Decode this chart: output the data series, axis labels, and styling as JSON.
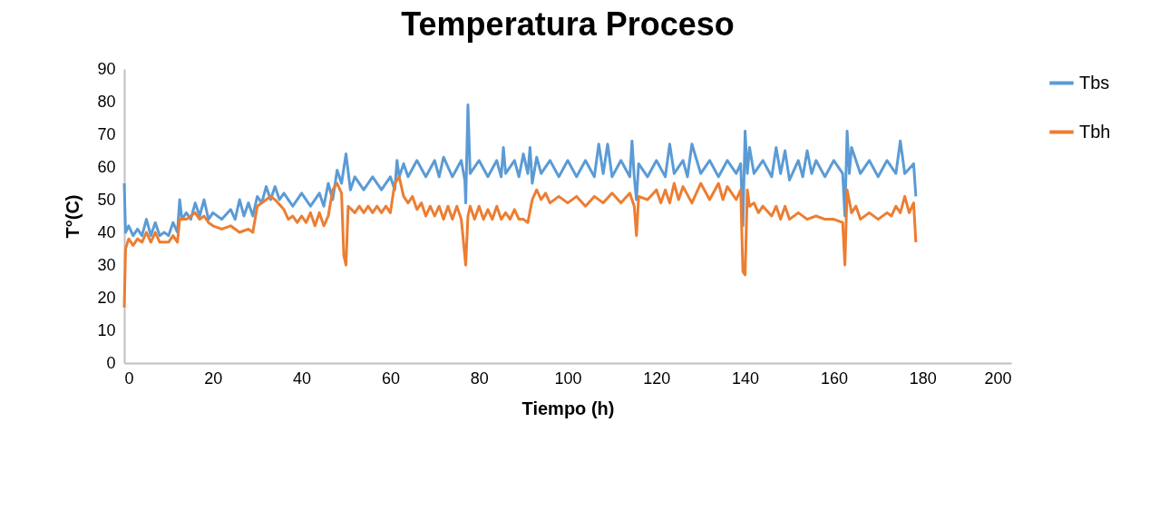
{
  "chart_data": {
    "type": "line",
    "title": "Temperatura  Proceso",
    "xlabel": "Tiempo (h)",
    "ylabel": "T°(C)",
    "xlim": [
      0,
      200
    ],
    "xticks": [
      0,
      20,
      40,
      60,
      80,
      100,
      120,
      140,
      160,
      180,
      200
    ],
    "ylim": [
      0,
      90
    ],
    "yticks": [
      0,
      10,
      20,
      30,
      40,
      50,
      60,
      70,
      80,
      90
    ],
    "grid": false,
    "legend": "right",
    "series": [
      {
        "name": "Tbs",
        "color": "#5b9bd5",
        "x": [
          0,
          0.3,
          1,
          2,
          3,
          4,
          5,
          6,
          7,
          8,
          9,
          10,
          11,
          12,
          12.5,
          13,
          14,
          15,
          16,
          17,
          18,
          19,
          20,
          22,
          24,
          25,
          26,
          27,
          28,
          29,
          30,
          31,
          32,
          33,
          34,
          35,
          36,
          38,
          40,
          42,
          44,
          45,
          46,
          47,
          48,
          49,
          50,
          51,
          52,
          54,
          56,
          58,
          60,
          61,
          61.5,
          62,
          63,
          64,
          66,
          68,
          70,
          71,
          72,
          74,
          76,
          76.8,
          77,
          77.5,
          78,
          80,
          82,
          84,
          85,
          85.5,
          86,
          88,
          89,
          90,
          91,
          91.5,
          92,
          93,
          94,
          96,
          98,
          100,
          102,
          104,
          106,
          107,
          108,
          109,
          110,
          112,
          114,
          114.5,
          115,
          115.5,
          116,
          118,
          120,
          122,
          123,
          124,
          126,
          127,
          128,
          130,
          132,
          134,
          136,
          138,
          139,
          139.5,
          140,
          140.5,
          141,
          142,
          144,
          146,
          147,
          148,
          149,
          150,
          152,
          153,
          154,
          155,
          156,
          158,
          160,
          162,
          162.5,
          163,
          163.5,
          164,
          166,
          168,
          170,
          172,
          174,
          175,
          176,
          178,
          178.5
        ],
        "values": [
          55,
          40,
          42,
          39,
          41,
          39,
          44,
          39,
          43,
          39,
          40,
          39,
          43,
          40,
          50,
          44,
          46,
          44,
          49,
          45,
          50,
          44,
          46,
          44,
          47,
          44,
          50,
          45,
          49,
          45,
          51,
          49,
          54,
          50,
          54,
          50,
          52,
          48,
          52,
          48,
          52,
          48,
          55,
          50,
          59,
          55,
          64,
          53,
          57,
          53,
          57,
          53,
          57,
          53,
          62,
          57,
          61,
          57,
          62,
          57,
          62,
          57,
          63,
          57,
          62,
          56,
          49,
          79,
          58,
          62,
          57,
          62,
          57,
          66,
          58,
          62,
          57,
          64,
          58,
          66,
          55,
          63,
          58,
          62,
          57,
          62,
          57,
          62,
          57,
          67,
          58,
          67,
          57,
          62,
          57,
          68,
          57,
          50,
          61,
          57,
          62,
          57,
          67,
          58,
          62,
          57,
          67,
          58,
          62,
          57,
          62,
          58,
          61,
          42,
          71,
          58,
          66,
          58,
          62,
          57,
          66,
          58,
          65,
          56,
          62,
          57,
          65,
          58,
          62,
          57,
          62,
          58,
          45,
          71,
          58,
          66,
          58,
          62,
          57,
          62,
          58,
          68,
          58,
          61,
          51
        ]
      },
      {
        "name": "Tbh",
        "color": "#ed7d31",
        "x": [
          0,
          0.3,
          1,
          2,
          3,
          4,
          5,
          6,
          7,
          8,
          9,
          10,
          11,
          12,
          12.5,
          14,
          16,
          17,
          18,
          19,
          20,
          22,
          24,
          26,
          28,
          29,
          30,
          32,
          33,
          34,
          36,
          37,
          38,
          39,
          40,
          41,
          42,
          43,
          44,
          45,
          46,
          47,
          48,
          49,
          49.5,
          50,
          50.5,
          52,
          53,
          54,
          55,
          56,
          57,
          58,
          59,
          60,
          61,
          62,
          63,
          64,
          65,
          66,
          67,
          68,
          69,
          70,
          71,
          72,
          73,
          74,
          75,
          76,
          77,
          77.5,
          78,
          79,
          80,
          81,
          82,
          83,
          84,
          85,
          86,
          87,
          88,
          89,
          90,
          91,
          92,
          93,
          94,
          95,
          96,
          98,
          100,
          102,
          104,
          106,
          108,
          110,
          112,
          114,
          115,
          115.5,
          116,
          118,
          120,
          121,
          122,
          123,
          124,
          125,
          126,
          128,
          130,
          132,
          134,
          135,
          136,
          138,
          139,
          139.5,
          140,
          140.5,
          141,
          142,
          143,
          144,
          146,
          147,
          148,
          149,
          150,
          152,
          154,
          156,
          158,
          160,
          162,
          162.5,
          163,
          164,
          165,
          166,
          168,
          170,
          172,
          173,
          174,
          175,
          176,
          177,
          178,
          178.5
        ],
        "values": [
          17,
          35,
          38,
          36,
          38,
          37,
          40,
          37,
          40,
          37,
          37,
          37,
          39,
          37,
          44,
          44,
          46,
          44,
          45,
          43,
          42,
          41,
          42,
          40,
          41,
          40,
          48,
          50,
          51,
          50,
          47,
          44,
          45,
          43,
          45,
          43,
          46,
          42,
          46,
          42,
          45,
          53,
          55,
          52,
          33,
          30,
          48,
          46,
          48,
          46,
          48,
          46,
          48,
          46,
          48,
          46,
          55,
          57,
          51,
          49,
          51,
          47,
          49,
          45,
          48,
          45,
          48,
          44,
          48,
          44,
          48,
          44,
          30,
          45,
          48,
          44,
          48,
          44,
          47,
          44,
          48,
          44,
          46,
          44,
          47,
          44,
          44,
          43,
          50,
          53,
          50,
          52,
          49,
          51,
          49,
          51,
          48,
          51,
          49,
          52,
          49,
          52,
          48,
          39,
          51,
          50,
          53,
          49,
          53,
          49,
          55,
          50,
          54,
          49,
          55,
          50,
          55,
          50,
          54,
          50,
          53,
          28,
          27,
          53,
          48,
          49,
          46,
          48,
          45,
          48,
          44,
          48,
          44,
          46,
          44,
          45,
          44,
          44,
          43,
          30,
          53,
          46,
          48,
          44,
          46,
          44,
          46,
          45,
          48,
          46,
          51,
          46,
          49,
          37
        ]
      }
    ]
  }
}
